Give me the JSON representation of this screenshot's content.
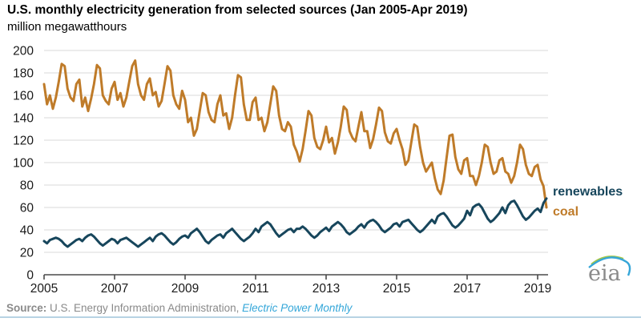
{
  "title": "U.S. monthly electricity generation from selected sources (Jan 2005-Apr 2019)",
  "subtitle": "million megawatthours",
  "legend": {
    "renewables": "renewables",
    "coal": "coal"
  },
  "source": {
    "label": "Source:",
    "text": " U.S. Energy Information Administration, ",
    "publication": "Electric Power Monthly"
  },
  "logo": {
    "text": "eia"
  },
  "colors": {
    "coal": "#bf7b29",
    "renewables": "#17465c",
    "grid": "#d9d9d9",
    "axis": "#4a4a4a",
    "tick_label": "#1a1a1a",
    "source_text": "#8a8a8a",
    "publication": "#35a7d9",
    "bottom_rule": "#b7d3e3",
    "logo_text": "#8a8a8a",
    "logo_arc_green": "#a3c644",
    "logo_arc_blue": "#36a6d8"
  },
  "chart_data": {
    "type": "line",
    "title": "U.S. monthly electricity generation from selected sources (Jan 2005-Apr 2019)",
    "ylabel": "million megawatthours",
    "x_start": "2005-01",
    "x_end": "2019-04",
    "months_per_point": 1,
    "x_tick_labels": [
      "2005",
      "2007",
      "2009",
      "2011",
      "2013",
      "2015",
      "2017",
      "2019"
    ],
    "y_ticks": [
      0,
      20,
      40,
      60,
      80,
      100,
      120,
      140,
      160,
      180,
      200
    ],
    "ylim": [
      0,
      200
    ],
    "grid": "horizontal-only",
    "legend_position": "right-of-line-ends",
    "series": [
      {
        "name": "coal",
        "color": "#bf7b29",
        "values": [
          170,
          152,
          160,
          148,
          158,
          172,
          188,
          186,
          166,
          158,
          155,
          170,
          174,
          150,
          158,
          146,
          157,
          170,
          187,
          184,
          160,
          155,
          152,
          166,
          172,
          156,
          162,
          150,
          158,
          172,
          186,
          191,
          170,
          160,
          156,
          170,
          175,
          160,
          163,
          150,
          155,
          170,
          186,
          182,
          160,
          152,
          148,
          164,
          156,
          136,
          140,
          124,
          130,
          146,
          162,
          160,
          145,
          138,
          136,
          152,
          160,
          142,
          144,
          130,
          140,
          160,
          178,
          176,
          152,
          138,
          138,
          154,
          158,
          138,
          140,
          128,
          136,
          152,
          168,
          164,
          142,
          130,
          128,
          136,
          132,
          116,
          110,
          101,
          112,
          128,
          146,
          142,
          122,
          114,
          112,
          120,
          132,
          118,
          122,
          108,
          118,
          132,
          150,
          147,
          128,
          122,
          119,
          132,
          145,
          128,
          128,
          113,
          121,
          134,
          149,
          146,
          127,
          119,
          117,
          126,
          130,
          120,
          112,
          98,
          102,
          118,
          134,
          132,
          114,
          100,
          92,
          96,
          100,
          86,
          76,
          72,
          84,
          104,
          124,
          125,
          105,
          94,
          90,
          102,
          104,
          88,
          88,
          80,
          88,
          100,
          116,
          114,
          100,
          90,
          92,
          102,
          104,
          92,
          90,
          82,
          88,
          100,
          116,
          112,
          98,
          90,
          88,
          96,
          98,
          85,
          79,
          60
        ]
      },
      {
        "name": "renewables",
        "color": "#17465c",
        "values": [
          30,
          28,
          31,
          32,
          33,
          32,
          30,
          27,
          25,
          27,
          29,
          31,
          32,
          30,
          33,
          35,
          36,
          34,
          31,
          28,
          26,
          28,
          30,
          32,
          31,
          28,
          31,
          32,
          33,
          31,
          29,
          27,
          25,
          27,
          29,
          31,
          33,
          30,
          34,
          36,
          37,
          35,
          32,
          29,
          27,
          29,
          32,
          34,
          35,
          33,
          37,
          39,
          41,
          38,
          34,
          30,
          28,
          31,
          33,
          35,
          36,
          33,
          37,
          39,
          41,
          38,
          35,
          32,
          30,
          32,
          34,
          37,
          41,
          38,
          43,
          45,
          47,
          45,
          41,
          37,
          34,
          36,
          38,
          40,
          41,
          38,
          41,
          41,
          43,
          41,
          38,
          35,
          33,
          35,
          38,
          40,
          42,
          39,
          43,
          45,
          47,
          45,
          42,
          38,
          36,
          38,
          40,
          43,
          45,
          42,
          46,
          48,
          49,
          47,
          44,
          40,
          38,
          40,
          42,
          45,
          46,
          43,
          47,
          48,
          49,
          46,
          43,
          40,
          38,
          40,
          43,
          46,
          49,
          46,
          52,
          54,
          55,
          52,
          48,
          44,
          42,
          44,
          47,
          50,
          57,
          53,
          60,
          62,
          63,
          60,
          55,
          50,
          47,
          49,
          52,
          55,
          60,
          55,
          62,
          65,
          66,
          62,
          57,
          52,
          49,
          51,
          54,
          57,
          59,
          56,
          64,
          68
        ]
      }
    ]
  }
}
